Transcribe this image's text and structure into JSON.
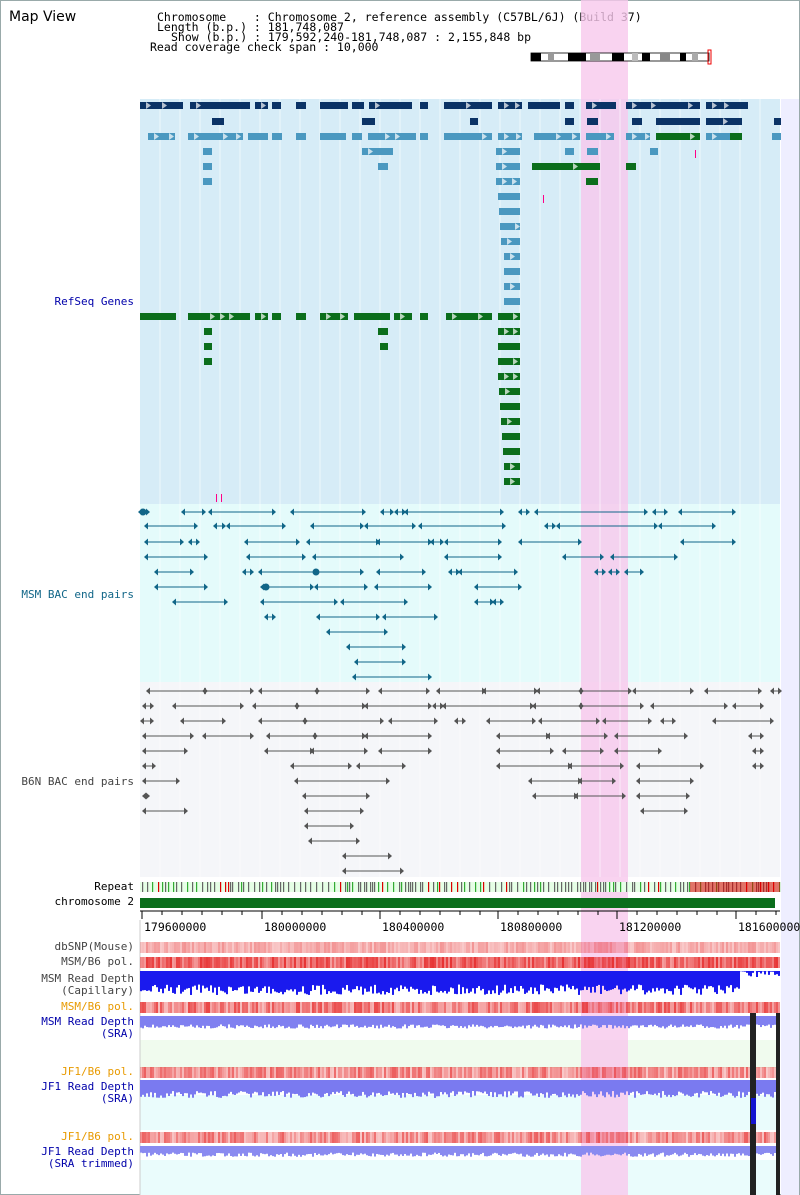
{
  "title": "Map View",
  "info": {
    "chromosome": "Chromosome    : Chromosome 2, reference assembly (C57BL/6J) (Build 37)",
    "length": "Length (b.p.) : 181,748,087",
    "show": "Show (b.p.) : 179,592,240-181,748,087 : 2,155,848 bp",
    "span": "Read coverage check span : 10,000"
  },
  "tracks": {
    "refseq": "RefSeq Genes",
    "msm_bac": "MSM BAC end pairs",
    "b6n_bac": "B6N BAC end pairs",
    "repeat": "Repeat",
    "chromosome": "chromosome 2",
    "dbsnp": "dbSNP(Mouse)",
    "msm_b6_pol": "MSM/B6 pol.",
    "msm_read_depth_cap": "MSM Read Depth",
    "capillary": "(Capillary)",
    "msm_b6_pol2": "MSM/B6 pol.",
    "msm_read_depth_sra": "MSM Read Depth",
    "sra1": "(SRA)",
    "jf1_b6_pol": "JF1/B6 pol.",
    "jf1_read_depth": "JF1 Read Depth",
    "sra2": "(SRA)",
    "jf1_b6_pol2": "JF1/B6 pol.",
    "jf1_read_depth_trim": "JF1 Read Depth",
    "sra_trimmed": "(SRA trimmed)"
  },
  "axis": {
    "ticks": [
      "179600000",
      "180000000",
      "180400000",
      "180800000",
      "181200000",
      "181600000"
    ]
  },
  "colors": {
    "refseq_bg": "#d6ecf7",
    "msm_bg": "#e4fbfb",
    "b6n_bg": "#f5f6f9",
    "highlight": "#f7c8ec",
    "gene_dark": "#0b3366",
    "gene_mid": "#4a98c0",
    "gene_green": "#0b6e1c",
    "msm_pair": "#116688",
    "b6n_pair": "#555555",
    "chrom_bar": "#0b6e1c",
    "label_blue": "#0000aa",
    "label_teal": "#116688",
    "label_gray": "#444444",
    "label_orange": "#e89a00"
  }
}
